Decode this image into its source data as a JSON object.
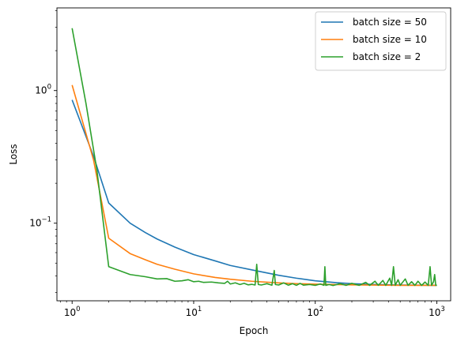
{
  "chart_data": {
    "type": "line",
    "title": "",
    "xlabel": "Epoch",
    "ylabel": "Loss",
    "xscale": "log",
    "yscale": "log",
    "xlim": [
      0.75,
      1300
    ],
    "ylim": [
      0.026,
      4.2
    ],
    "xticks": [
      {
        "value": 1,
        "base": "10",
        "exp": "0"
      },
      {
        "value": 10,
        "base": "10",
        "exp": "1"
      },
      {
        "value": 100,
        "base": "10",
        "exp": "2"
      },
      {
        "value": 1000,
        "base": "10",
        "exp": "3"
      }
    ],
    "yticks": [
      {
        "value": 0.1,
        "base": "10",
        "exp": "−1"
      },
      {
        "value": 1,
        "base": "10",
        "exp": "0"
      }
    ],
    "grid": false,
    "legend_position": "top-right",
    "series": [
      {
        "name": "batch size = 50",
        "color": "#1f77b4",
        "points": [
          [
            1,
            0.85
          ],
          [
            1.5,
            0.32
          ],
          [
            2,
            0.142
          ],
          [
            3,
            0.1
          ],
          [
            4,
            0.085
          ],
          [
            5,
            0.076
          ],
          [
            7,
            0.066
          ],
          [
            10,
            0.058
          ],
          [
            15,
            0.052
          ],
          [
            20,
            0.048
          ],
          [
            30,
            0.0445
          ],
          [
            50,
            0.0405
          ],
          [
            70,
            0.0385
          ],
          [
            100,
            0.0368
          ],
          [
            150,
            0.0356
          ],
          [
            200,
            0.035
          ],
          [
            300,
            0.0345
          ],
          [
            500,
            0.0342
          ],
          [
            1000,
            0.034
          ]
        ]
      },
      {
        "name": "batch size = 10",
        "color": "#ff7f0e",
        "points": [
          [
            1,
            1.1
          ],
          [
            1.5,
            0.3
          ],
          [
            2,
            0.077
          ],
          [
            3,
            0.059
          ],
          [
            4,
            0.053
          ],
          [
            5,
            0.049
          ],
          [
            7,
            0.045
          ],
          [
            10,
            0.0415
          ],
          [
            15,
            0.039
          ],
          [
            20,
            0.0378
          ],
          [
            30,
            0.0365
          ],
          [
            50,
            0.0355
          ],
          [
            70,
            0.035
          ],
          [
            100,
            0.0347
          ],
          [
            200,
            0.0343
          ],
          [
            500,
            0.034
          ],
          [
            1000,
            0.034
          ]
        ]
      },
      {
        "name": "batch size = 2",
        "color": "#2ca02c",
        "points": [
          [
            1,
            2.95
          ],
          [
            1.3,
            0.8
          ],
          [
            1.6,
            0.25
          ],
          [
            2,
            0.047
          ],
          [
            3,
            0.041
          ],
          [
            4,
            0.0395
          ],
          [
            5,
            0.038
          ],
          [
            6,
            0.0382
          ],
          [
            7,
            0.0365
          ],
          [
            8,
            0.0368
          ],
          [
            9,
            0.0375
          ],
          [
            10,
            0.0362
          ],
          [
            11,
            0.0365
          ],
          [
            12,
            0.0358
          ],
          [
            14,
            0.036
          ],
          [
            16,
            0.0355
          ],
          [
            18,
            0.0352
          ],
          [
            19,
            0.0365
          ],
          [
            20,
            0.0348
          ],
          [
            22,
            0.0355
          ],
          [
            24,
            0.0345
          ],
          [
            26,
            0.0352
          ],
          [
            28,
            0.0343
          ],
          [
            30,
            0.0346
          ],
          [
            32,
            0.0342
          ],
          [
            33,
            0.049
          ],
          [
            34,
            0.0345
          ],
          [
            36,
            0.0342
          ],
          [
            40,
            0.035
          ],
          [
            44,
            0.0341
          ],
          [
            46,
            0.044
          ],
          [
            47,
            0.0345
          ],
          [
            50,
            0.0342
          ],
          [
            55,
            0.0355
          ],
          [
            60,
            0.0341
          ],
          [
            65,
            0.035
          ],
          [
            70,
            0.034
          ],
          [
            75,
            0.0352
          ],
          [
            80,
            0.0341
          ],
          [
            90,
            0.0345
          ],
          [
            100,
            0.034
          ],
          [
            110,
            0.0348
          ],
          [
            118,
            0.034
          ],
          [
            120,
            0.047
          ],
          [
            122,
            0.034
          ],
          [
            130,
            0.0345
          ],
          [
            140,
            0.0339
          ],
          [
            160,
            0.035
          ],
          [
            180,
            0.034
          ],
          [
            200,
            0.0352
          ],
          [
            230,
            0.034
          ],
          [
            260,
            0.0358
          ],
          [
            280,
            0.034
          ],
          [
            310,
            0.0365
          ],
          [
            330,
            0.034
          ],
          [
            360,
            0.037
          ],
          [
            380,
            0.034
          ],
          [
            410,
            0.0385
          ],
          [
            425,
            0.034
          ],
          [
            440,
            0.047
          ],
          [
            455,
            0.034
          ],
          [
            480,
            0.0375
          ],
          [
            500,
            0.034
          ],
          [
            550,
            0.038
          ],
          [
            580,
            0.034
          ],
          [
            620,
            0.0362
          ],
          [
            660,
            0.034
          ],
          [
            700,
            0.0365
          ],
          [
            750,
            0.034
          ],
          [
            800,
            0.036
          ],
          [
            850,
            0.034
          ],
          [
            880,
            0.047
          ],
          [
            905,
            0.034
          ],
          [
            940,
            0.0362
          ],
          [
            960,
            0.041
          ],
          [
            980,
            0.034
          ],
          [
            1000,
            0.0342
          ]
        ]
      }
    ]
  }
}
